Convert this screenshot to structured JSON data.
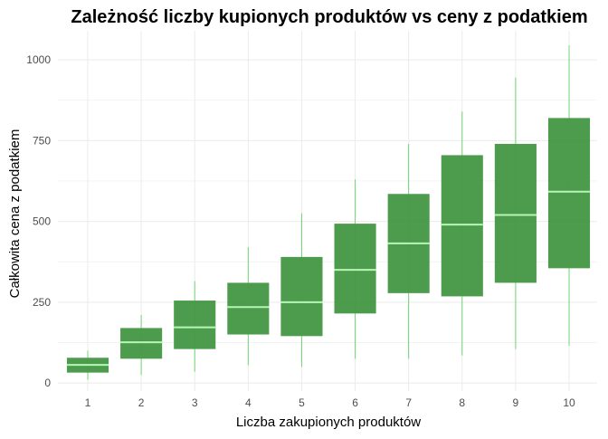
{
  "chart_data": {
    "type": "boxplot",
    "title": "Zależność liczby kupionych produktów vs ceny z podatkiem",
    "xlabel": "Liczba zakupionych produktów",
    "ylabel": "Całkowita cena z podatkiem",
    "categories": [
      "1",
      "2",
      "3",
      "4",
      "5",
      "6",
      "7",
      "8",
      "9",
      "10"
    ],
    "ylim": [
      -25,
      1090
    ],
    "yticks": [
      0,
      250,
      500,
      750,
      1000
    ],
    "grid": true,
    "legend": "none",
    "boxes": [
      {
        "category": "1",
        "min": 10,
        "q1": 32,
        "median": 56,
        "q3": 78,
        "max": 100
      },
      {
        "category": "2",
        "min": 25,
        "q1": 75,
        "median": 126,
        "q3": 170,
        "max": 210
      },
      {
        "category": "3",
        "min": 35,
        "q1": 105,
        "median": 172,
        "q3": 255,
        "max": 315
      },
      {
        "category": "4",
        "min": 55,
        "q1": 150,
        "median": 235,
        "q3": 310,
        "max": 420
      },
      {
        "category": "5",
        "min": 50,
        "q1": 145,
        "median": 250,
        "q3": 390,
        "max": 525
      },
      {
        "category": "6",
        "min": 75,
        "q1": 215,
        "median": 350,
        "q3": 493,
        "max": 630
      },
      {
        "category": "7",
        "min": 75,
        "q1": 278,
        "median": 432,
        "q3": 585,
        "max": 740
      },
      {
        "category": "8",
        "min": 85,
        "q1": 268,
        "median": 490,
        "q3": 705,
        "max": 840
      },
      {
        "category": "9",
        "min": 105,
        "q1": 310,
        "median": 520,
        "q3": 740,
        "max": 945
      },
      {
        "category": "10",
        "min": 115,
        "q1": 355,
        "median": 592,
        "q3": 820,
        "max": 1045
      }
    ],
    "colors": {
      "box_fill": "#2e8b2e",
      "box_opacity": 0.85,
      "median_line": "#b7f5b7",
      "whisker": "#6fd66f",
      "grid": "#ebebeb"
    }
  }
}
